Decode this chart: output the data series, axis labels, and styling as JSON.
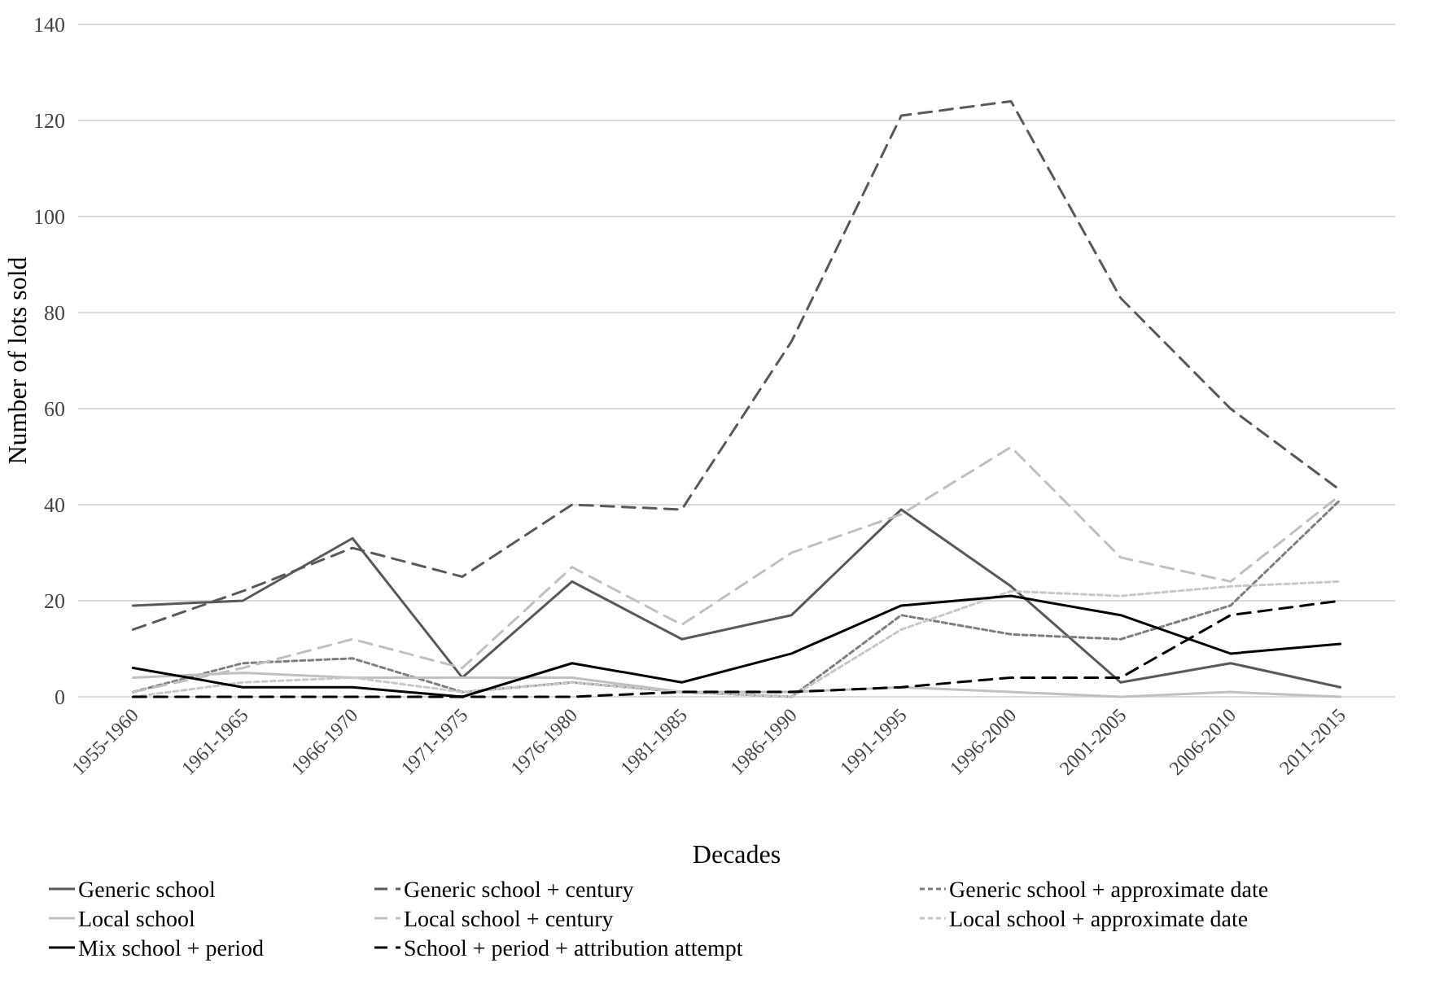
{
  "chart_data": {
    "type": "line",
    "xlabel": "Decades",
    "ylabel": "Number of lots sold",
    "categories": [
      "1955-1960",
      "1961-1965",
      "1966-1970",
      "1971-1975",
      "1976-1980",
      "1981-1985",
      "1986-1990",
      "1991-1995",
      "1996-2000",
      "2001-2005",
      "2006-2010",
      "2011-2015"
    ],
    "ylim": [
      0,
      140
    ],
    "yticks": [
      0,
      20,
      40,
      60,
      80,
      100,
      120,
      140
    ],
    "grid": "y",
    "legend": "bottom",
    "marker": "none",
    "series": [
      {
        "name": "Generic school",
        "color": "#595959",
        "line_style": "solid",
        "values": [
          19,
          20,
          33,
          4,
          24,
          12,
          17,
          39,
          23,
          3,
          7,
          2
        ]
      },
      {
        "name": "Generic school + century",
        "color": "#595959",
        "line_style": "dashed",
        "values": [
          14,
          22,
          31,
          25,
          40,
          39,
          74,
          121,
          124,
          83,
          60,
          43
        ]
      },
      {
        "name": "Generic school + approximate date",
        "color": "#7f7f7f",
        "line_style": "dotted",
        "values": [
          1,
          7,
          8,
          1,
          3,
          1,
          0,
          17,
          13,
          12,
          19,
          41
        ]
      },
      {
        "name": "Local school",
        "color": "#c0c0c0",
        "line_style": "solid",
        "values": [
          4,
          5,
          4,
          4,
          4,
          1,
          1,
          2,
          1,
          0,
          1,
          0
        ]
      },
      {
        "name": "Local school + century",
        "color": "#c0c0c0",
        "line_style": "dashed",
        "values": [
          1,
          6,
          12,
          6,
          27,
          15,
          30,
          38,
          52,
          29,
          24,
          42
        ]
      },
      {
        "name": "Local school + approximate date",
        "color": "#c8c8c8",
        "line_style": "dotted",
        "values": [
          0,
          3,
          4,
          1,
          3,
          1,
          0,
          14,
          22,
          21,
          23,
          24
        ]
      },
      {
        "name": "Mix school + period",
        "color": "#000000",
        "line_style": "solid",
        "values": [
          6,
          2,
          2,
          0,
          7,
          3,
          9,
          19,
          21,
          17,
          9,
          11
        ]
      },
      {
        "name": "School + period + attribution attempt",
        "color": "#000000",
        "line_style": "dashed",
        "values": [
          0,
          0,
          0,
          0,
          0,
          1,
          1,
          2,
          4,
          4,
          17,
          20
        ]
      }
    ]
  }
}
